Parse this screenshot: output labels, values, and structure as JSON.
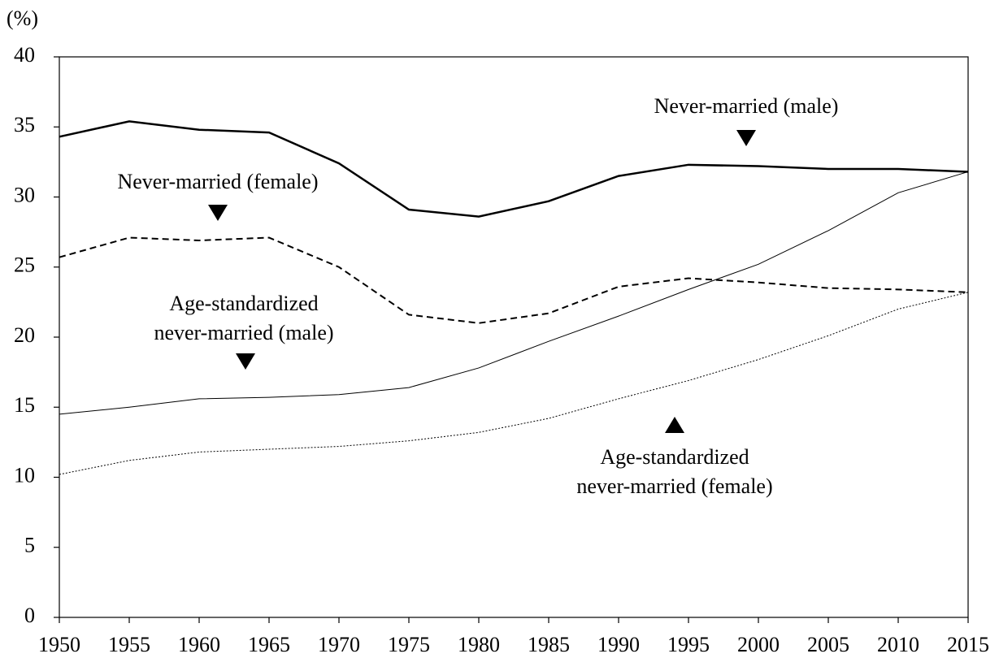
{
  "chart_data": {
    "type": "line",
    "y_axis_label": "(%)",
    "x": [
      1950,
      1955,
      1960,
      1965,
      1970,
      1975,
      1980,
      1985,
      1990,
      1995,
      2000,
      2005,
      2010,
      2015
    ],
    "xlim": [
      1950,
      2015
    ],
    "xticks": [
      1950,
      1955,
      1960,
      1965,
      1970,
      1975,
      1980,
      1985,
      1990,
      1995,
      2000,
      2005,
      2010,
      2015
    ],
    "ylim": [
      0,
      40
    ],
    "yticks": [
      0,
      5,
      10,
      15,
      20,
      25,
      30,
      35,
      40
    ],
    "series": [
      {
        "color": "#000000",
        "line_style": "solid",
        "line_width": 2.5,
        "values": [
          34.3,
          35.4,
          34.8,
          34.6,
          32.4,
          29.1,
          28.6,
          29.7,
          31.5,
          32.3,
          32.2,
          32.0,
          32.0,
          31.8
        ]
      },
      {
        "color": "#000000",
        "line_style": "dashed",
        "line_width": 2,
        "values": [
          25.7,
          27.1,
          26.9,
          27.1,
          25.0,
          21.6,
          21.0,
          21.7,
          23.6,
          24.2,
          23.9,
          23.5,
          23.4,
          23.2
        ]
      },
      {
        "color": "#000000",
        "line_style": "solid",
        "line_width": 1,
        "values": [
          14.5,
          15.0,
          15.6,
          15.7,
          15.9,
          16.4,
          17.8,
          19.7,
          21.5,
          23.4,
          25.2,
          27.6,
          30.3,
          31.8
        ]
      },
      {
        "color": "#000000",
        "line_style": "dotted",
        "line_width": 1,
        "values": [
          10.2,
          11.2,
          11.8,
          12.0,
          12.2,
          12.6,
          13.2,
          14.2,
          15.6,
          16.9,
          18.4,
          20.1,
          22.0,
          23.2
        ]
      }
    ],
    "annotations": [
      {
        "lines": [
          "Never-married (male)"
        ]
      },
      {
        "lines": [
          "Never-married (female)"
        ]
      },
      {
        "lines": [
          "Age-standardized",
          "never-married (male)"
        ]
      },
      {
        "lines": [
          "Age-standardized",
          "never-married (female)"
        ]
      }
    ]
  }
}
